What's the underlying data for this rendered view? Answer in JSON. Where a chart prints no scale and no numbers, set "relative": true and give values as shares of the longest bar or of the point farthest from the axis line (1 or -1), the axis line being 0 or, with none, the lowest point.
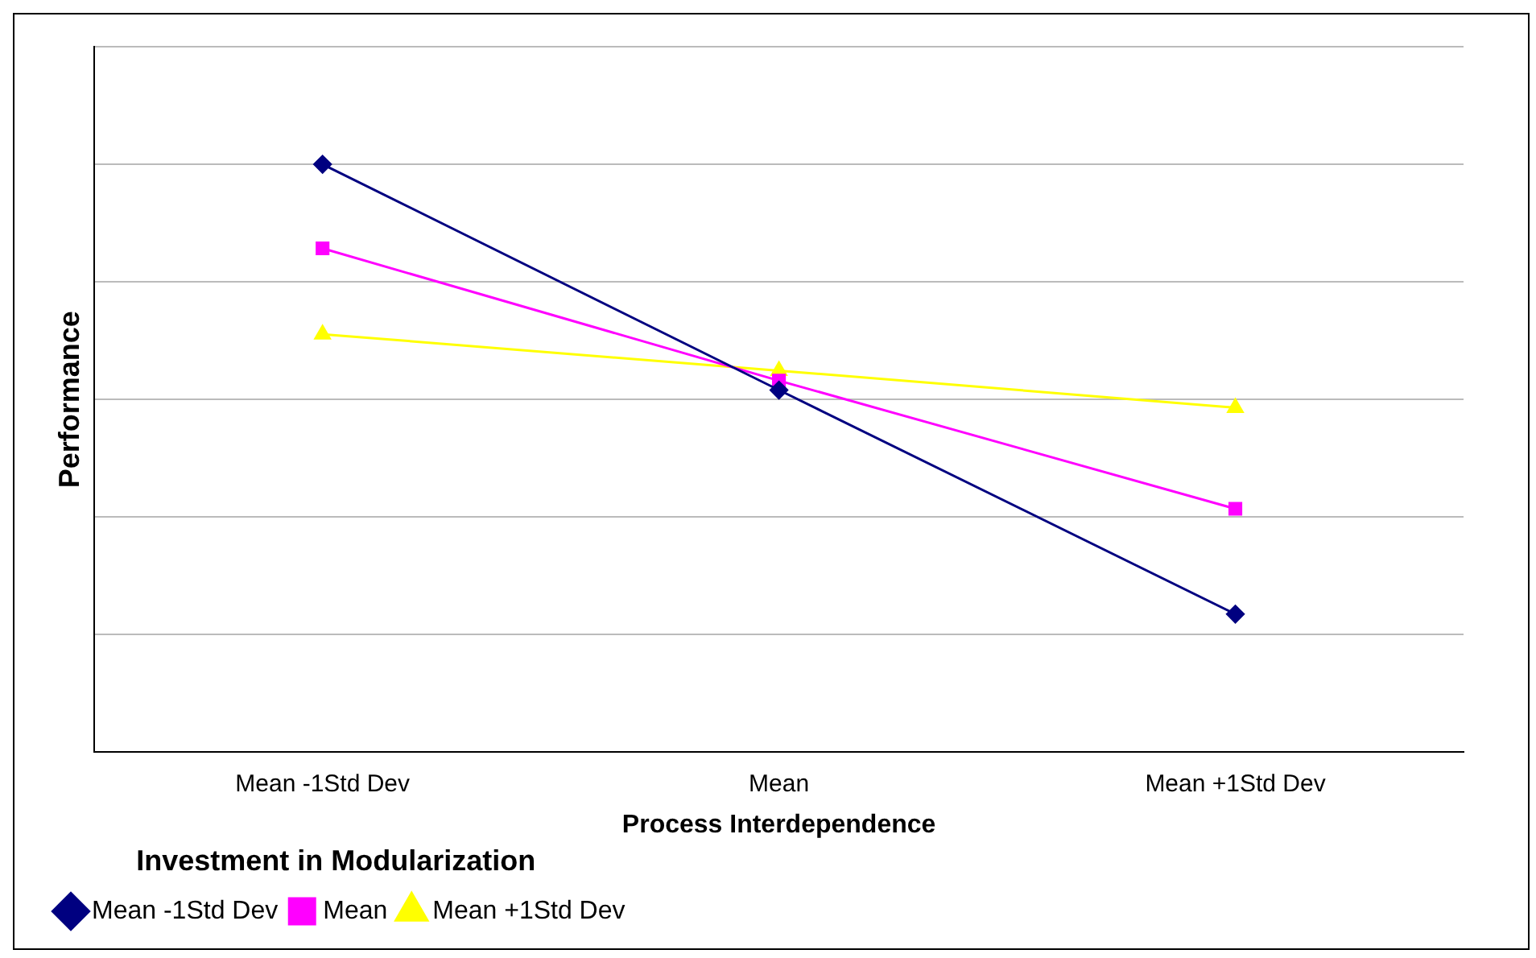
{
  "chart_data": {
    "type": "line",
    "ylabel": "Performance",
    "xlabel": "Process Interdependence",
    "legend_title": "Investment in Modularization",
    "categories": [
      "Mean -1Std Dev",
      "Mean",
      "Mean +1Std Dev"
    ],
    "relative": true,
    "grid": "y",
    "legend": "bottom",
    "line_style": "solid",
    "series": [
      {
        "name": "Mean -1Std Dev",
        "color": "#000080",
        "marker": "diamond",
        "values": [
          1,
          0.616,
          0.235
        ]
      },
      {
        "name": "Mean",
        "color": "#ff00ff",
        "marker": "square",
        "values": [
          0.857,
          0.632,
          0.414
        ]
      },
      {
        "name": "Mean +1Std Dev",
        "color": "#ffff00",
        "marker": "triangle",
        "values": [
          0.711,
          0.649,
          0.586
        ]
      }
    ]
  }
}
